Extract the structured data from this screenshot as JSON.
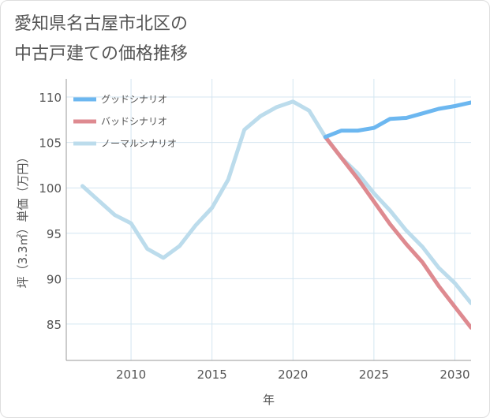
{
  "chart_data": {
    "type": "line",
    "title": "愛知県名古屋市北区の\n中古戸建ての価格推移",
    "xlabel": "年",
    "ylabel": "坪（3.3㎡）単価（万円）",
    "xlim": [
      2006,
      2031
    ],
    "ylim": [
      81,
      112
    ],
    "x_ticks": [
      2010,
      2015,
      2020,
      2025,
      2030
    ],
    "y_ticks": [
      85,
      90,
      95,
      100,
      105,
      110
    ],
    "grid": true,
    "legend_position": "top-left",
    "series": [
      {
        "name": "グッドシナリオ",
        "color": "#6cb7f0",
        "x": [
          2022,
          2023,
          2024,
          2025,
          2026,
          2027,
          2028,
          2029,
          2030,
          2031
        ],
        "values": [
          105.6,
          106.3,
          106.3,
          106.6,
          107.6,
          107.7,
          108.2,
          108.7,
          109.0,
          109.4
        ]
      },
      {
        "name": "バッドシナリオ",
        "color": "#de8a90",
        "x": [
          2022,
          2023,
          2024,
          2025,
          2026,
          2027,
          2028,
          2029,
          2030,
          2031
        ],
        "values": [
          105.6,
          103.3,
          101.0,
          98.5,
          96.0,
          93.8,
          91.8,
          89.2,
          86.9,
          84.6
        ]
      },
      {
        "name": "ノーマルシナリオ",
        "color": "#bcdcec",
        "x": [
          2007,
          2008,
          2009,
          2010,
          2011,
          2012,
          2013,
          2014,
          2015,
          2016,
          2017,
          2018,
          2019,
          2020,
          2021,
          2022,
          2023,
          2024,
          2025,
          2026,
          2027,
          2028,
          2029,
          2030,
          2031
        ],
        "values": [
          100.2,
          98.6,
          97.0,
          96.1,
          93.3,
          92.3,
          93.6,
          95.9,
          97.8,
          100.9,
          106.4,
          107.9,
          108.9,
          109.5,
          108.5,
          105.6,
          103.3,
          101.6,
          99.4,
          97.5,
          95.3,
          93.5,
          91.2,
          89.5,
          87.3
        ]
      }
    ]
  }
}
